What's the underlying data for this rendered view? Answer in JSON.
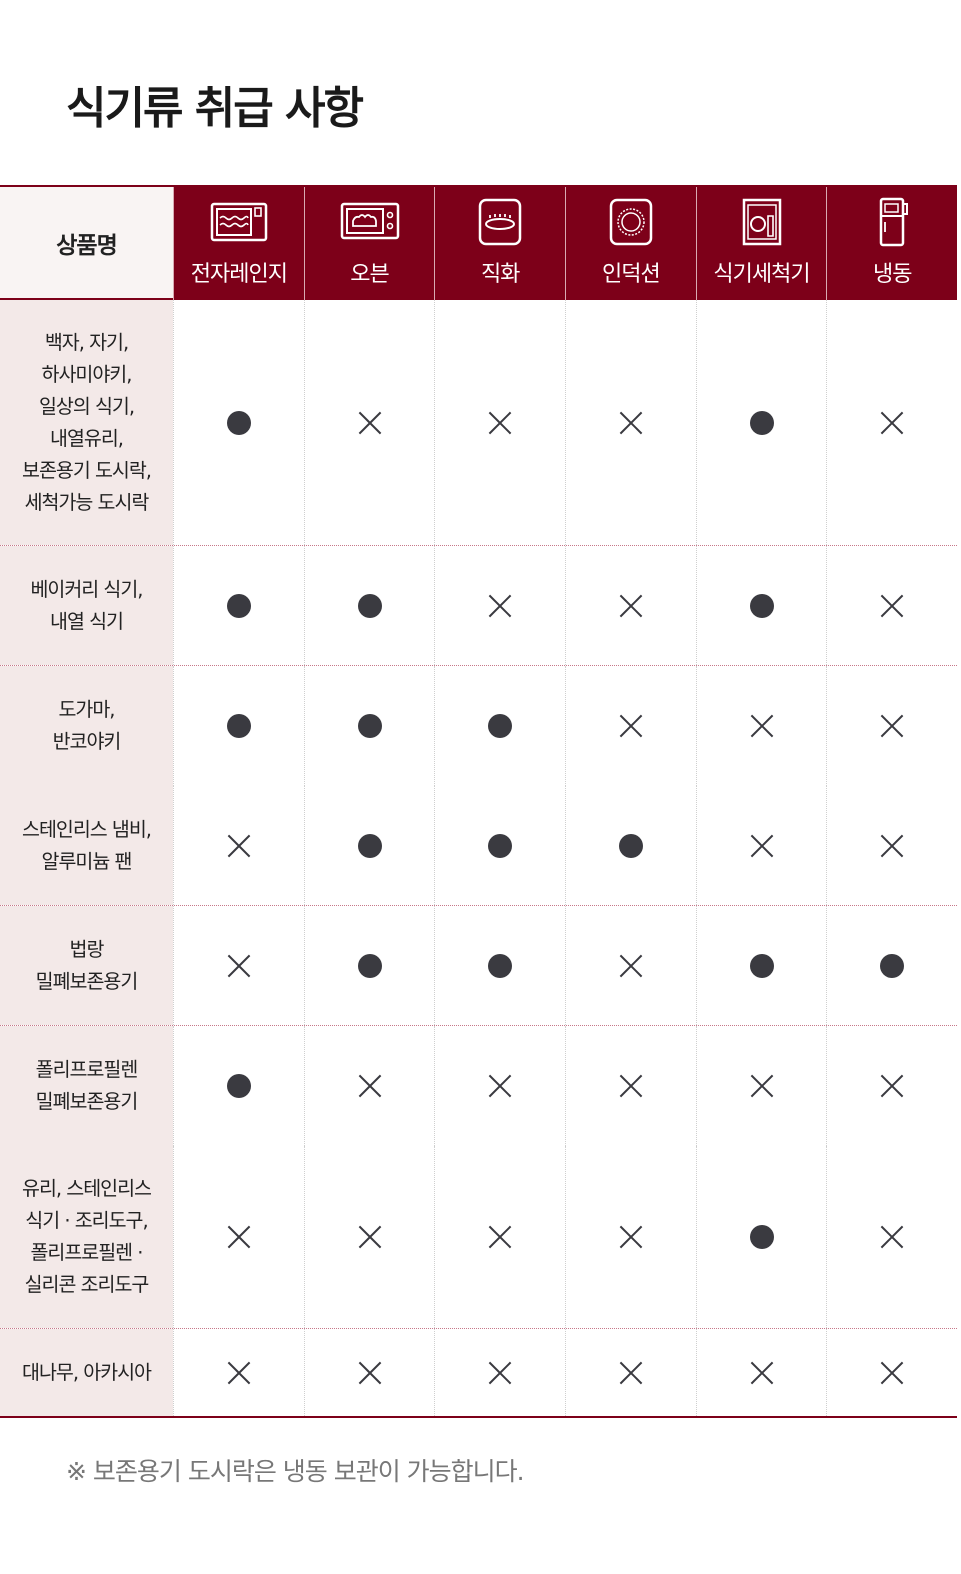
{
  "title": "식기류 취급 사항",
  "header": {
    "name_label": "상품명",
    "columns": [
      {
        "label": "전자레인지",
        "icon": "microwave-icon"
      },
      {
        "label": "오븐",
        "icon": "oven-icon"
      },
      {
        "label": "직화",
        "icon": "gas-burner-icon"
      },
      {
        "label": "인덕션",
        "icon": "induction-icon"
      },
      {
        "label": "식기세척기",
        "icon": "dishwasher-icon"
      },
      {
        "label": "냉동",
        "icon": "freezer-icon"
      }
    ]
  },
  "legend": {
    "ok": "●",
    "no": "×"
  },
  "groups": [
    {
      "rows": [
        {
          "name": "백자, 자기,\n하사미야키,\n일상의 식기,\n내열유리,\n보존용기 도시락,\n세척가능 도시락",
          "marks": [
            "ok",
            "no",
            "no",
            "no",
            "ok",
            "no"
          ]
        }
      ]
    },
    {
      "rows": [
        {
          "name": "베이커리 식기,\n내열 식기",
          "marks": [
            "ok",
            "ok",
            "no",
            "no",
            "ok",
            "no"
          ]
        }
      ]
    },
    {
      "rows": [
        {
          "name": "도가마,\n반코야키",
          "marks": [
            "ok",
            "ok",
            "ok",
            "no",
            "no",
            "no"
          ]
        },
        {
          "name": "스테인리스 냄비,\n알루미늄 팬",
          "marks": [
            "no",
            "ok",
            "ok",
            "ok",
            "no",
            "no"
          ]
        }
      ]
    },
    {
      "rows": [
        {
          "name": "법랑\n밀폐보존용기",
          "marks": [
            "no",
            "ok",
            "ok",
            "no",
            "ok",
            "ok"
          ]
        }
      ]
    },
    {
      "rows": [
        {
          "name": "폴리프로필렌\n밀폐보존용기",
          "marks": [
            "ok",
            "no",
            "no",
            "no",
            "no",
            "no"
          ]
        },
        {
          "name": "유리, 스테인리스\n식기 · 조리도구,\n폴리프로필렌 ·\n실리콘 조리도구",
          "marks": [
            "no",
            "no",
            "no",
            "no",
            "ok",
            "no"
          ]
        }
      ]
    },
    {
      "rows": [
        {
          "name": "대나무, 아카시아",
          "marks": [
            "no",
            "no",
            "no",
            "no",
            "no",
            "no"
          ]
        }
      ]
    }
  ],
  "note": "※ 보존용기 도시락은 냉동 보관이 가능합니다.",
  "colors": {
    "header": "#7d0019",
    "name_bg": "#f3e9e8",
    "mark": "#3a3a40"
  }
}
